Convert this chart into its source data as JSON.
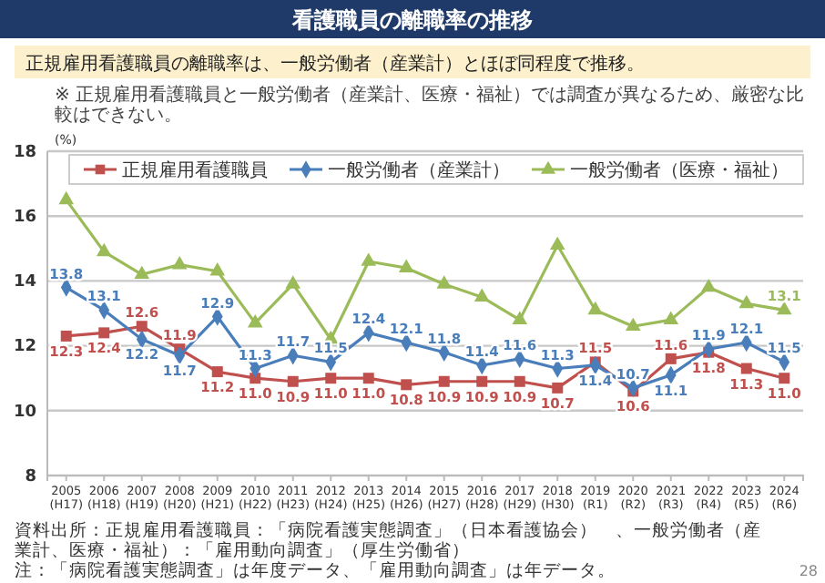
{
  "chart_data": {
    "type": "line",
    "title": "看護職員の離職率の推移",
    "subtitle": "正規雇用看護職員の離職率は、一般労働者（産業計）とほぼ同程度で推移。",
    "ylabel": "(%)",
    "annotations": [
      "※ 正規雇用看護職員と一般労働者（産業計、医療・福祉）では調査が異なるため、厳密な比較はできない。",
      "資料出所：正規雇用看護職員：「病院看護実態調査」（日本看護協会）　、一般労働者（産業計、医療・福祉）：「雇用動向調査」（厚生労働省）",
      "注：「病院看護実態調査」は年度データ、「雇用動向調査」は年データ。",
      "28"
    ],
    "categories": [
      "2005\n(H17)",
      "2006\n(H18)",
      "2007\n(H19)",
      "2008\n(H20)",
      "2009\n(H21)",
      "2010\n(H22)",
      "2011\n(H23)",
      "2012\n(H24)",
      "2013\n(H25)",
      "2014\n(H26)",
      "2015\n(H27)",
      "2016\n(H28)",
      "2017\n(H29)",
      "2018\n(H30)",
      "2019\n(R1)",
      "2020\n(R2)",
      "2021\n(R3)",
      "2022\n(R4)",
      "2023\n(R5)",
      "2024\n(R6)"
    ],
    "series": [
      {
        "name": "正規雇用看護職員",
        "color": "#c0504d",
        "marker": "square",
        "values": [
          12.3,
          12.4,
          12.6,
          11.9,
          11.2,
          11.0,
          10.9,
          11.0,
          11.0,
          10.8,
          10.9,
          10.9,
          10.9,
          10.7,
          11.5,
          10.6,
          11.6,
          11.8,
          11.3,
          11.0
        ],
        "value_labels": [
          "12.3",
          "12.4",
          "12.6",
          "11.9",
          "11.2",
          "11.0",
          "10.9",
          "11.0",
          "11.0",
          "10.8",
          "10.9",
          "10.9",
          "10.9",
          "10.7",
          "11.5",
          "10.6",
          "11.6",
          "11.8",
          "11.3",
          "11.0"
        ]
      },
      {
        "name": "一般労働者（産業計）",
        "color": "#4a7ebb",
        "marker": "diamond",
        "values": [
          13.8,
          13.1,
          12.2,
          11.7,
          12.9,
          11.3,
          11.7,
          11.5,
          12.4,
          12.1,
          11.8,
          11.4,
          11.6,
          11.3,
          11.4,
          10.7,
          11.1,
          11.9,
          12.1,
          11.5
        ],
        "value_labels": [
          "13.8",
          "13.1",
          "12.2",
          "11.7",
          "12.9",
          "11.3",
          "11.7",
          "11.5",
          "12.4",
          "12.1",
          "11.8",
          "11.4",
          "11.6",
          "11.3",
          "11.4",
          "10.7",
          "11.1",
          "11.9",
          "12.1",
          "11.5"
        ]
      },
      {
        "name": "一般労働者（医療・福祉）",
        "color": "#9bbb59",
        "marker": "triangle",
        "values": [
          16.5,
          14.9,
          14.2,
          14.5,
          14.3,
          12.7,
          13.9,
          12.2,
          14.6,
          14.4,
          13.9,
          13.5,
          12.8,
          15.1,
          13.1,
          12.6,
          12.8,
          13.8,
          13.3,
          13.1
        ],
        "value_labels": [
          null,
          null,
          null,
          null,
          null,
          null,
          null,
          null,
          null,
          null,
          null,
          null,
          null,
          null,
          null,
          null,
          null,
          null,
          null,
          "13.1"
        ]
      }
    ],
    "ylim": [
      8,
      18
    ],
    "yticks": [
      8,
      10,
      12,
      14,
      16,
      18
    ],
    "grid": "y",
    "legend": "top"
  }
}
